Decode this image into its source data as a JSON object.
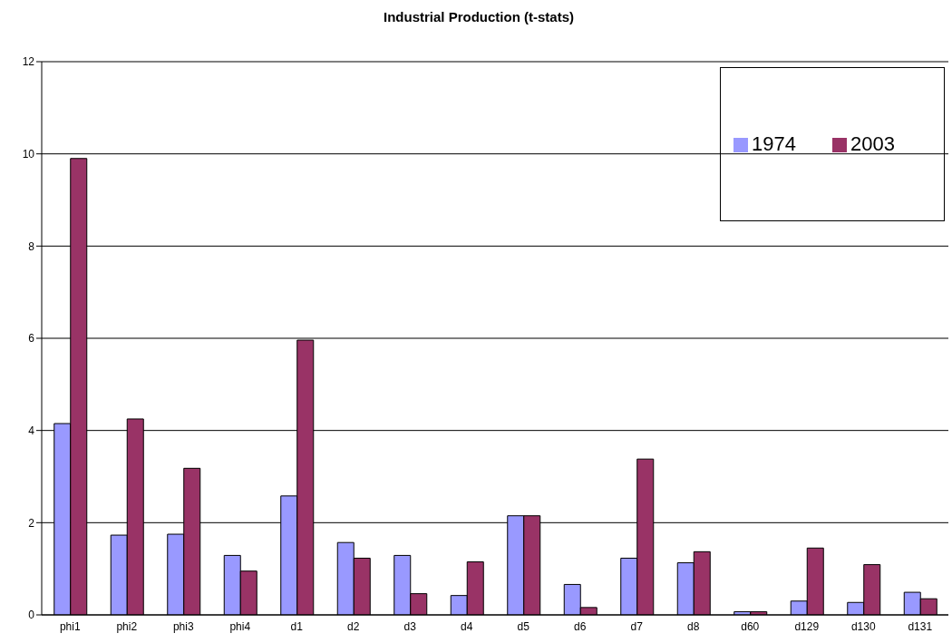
{
  "chart_data": {
    "type": "bar",
    "title": "Industrial Production (t-stats)",
    "categories": [
      "phi1",
      "phi2",
      "phi3",
      "phi4",
      "d1",
      "d2",
      "d3",
      "d4",
      "d5",
      "d6",
      "d7",
      "d8",
      "d60",
      "d129",
      "d130",
      "d131"
    ],
    "series": [
      {
        "name": "1974",
        "color": "#9999ff",
        "values": [
          4.15,
          1.73,
          1.75,
          1.29,
          2.58,
          1.57,
          1.29,
          0.42,
          2.15,
          0.66,
          1.23,
          1.13,
          0.07,
          0.3,
          0.27,
          0.49
        ]
      },
      {
        "name": "2003",
        "color": "#993366",
        "values": [
          9.9,
          4.25,
          3.18,
          0.95,
          5.96,
          1.23,
          0.46,
          1.15,
          2.15,
          0.16,
          3.38,
          1.37,
          0.07,
          1.45,
          1.09,
          0.35
        ]
      }
    ],
    "ylim": [
      0,
      12
    ],
    "yticks": [
      0,
      2,
      4,
      6,
      8,
      10,
      12
    ],
    "grid": "y",
    "legend": "top right"
  }
}
